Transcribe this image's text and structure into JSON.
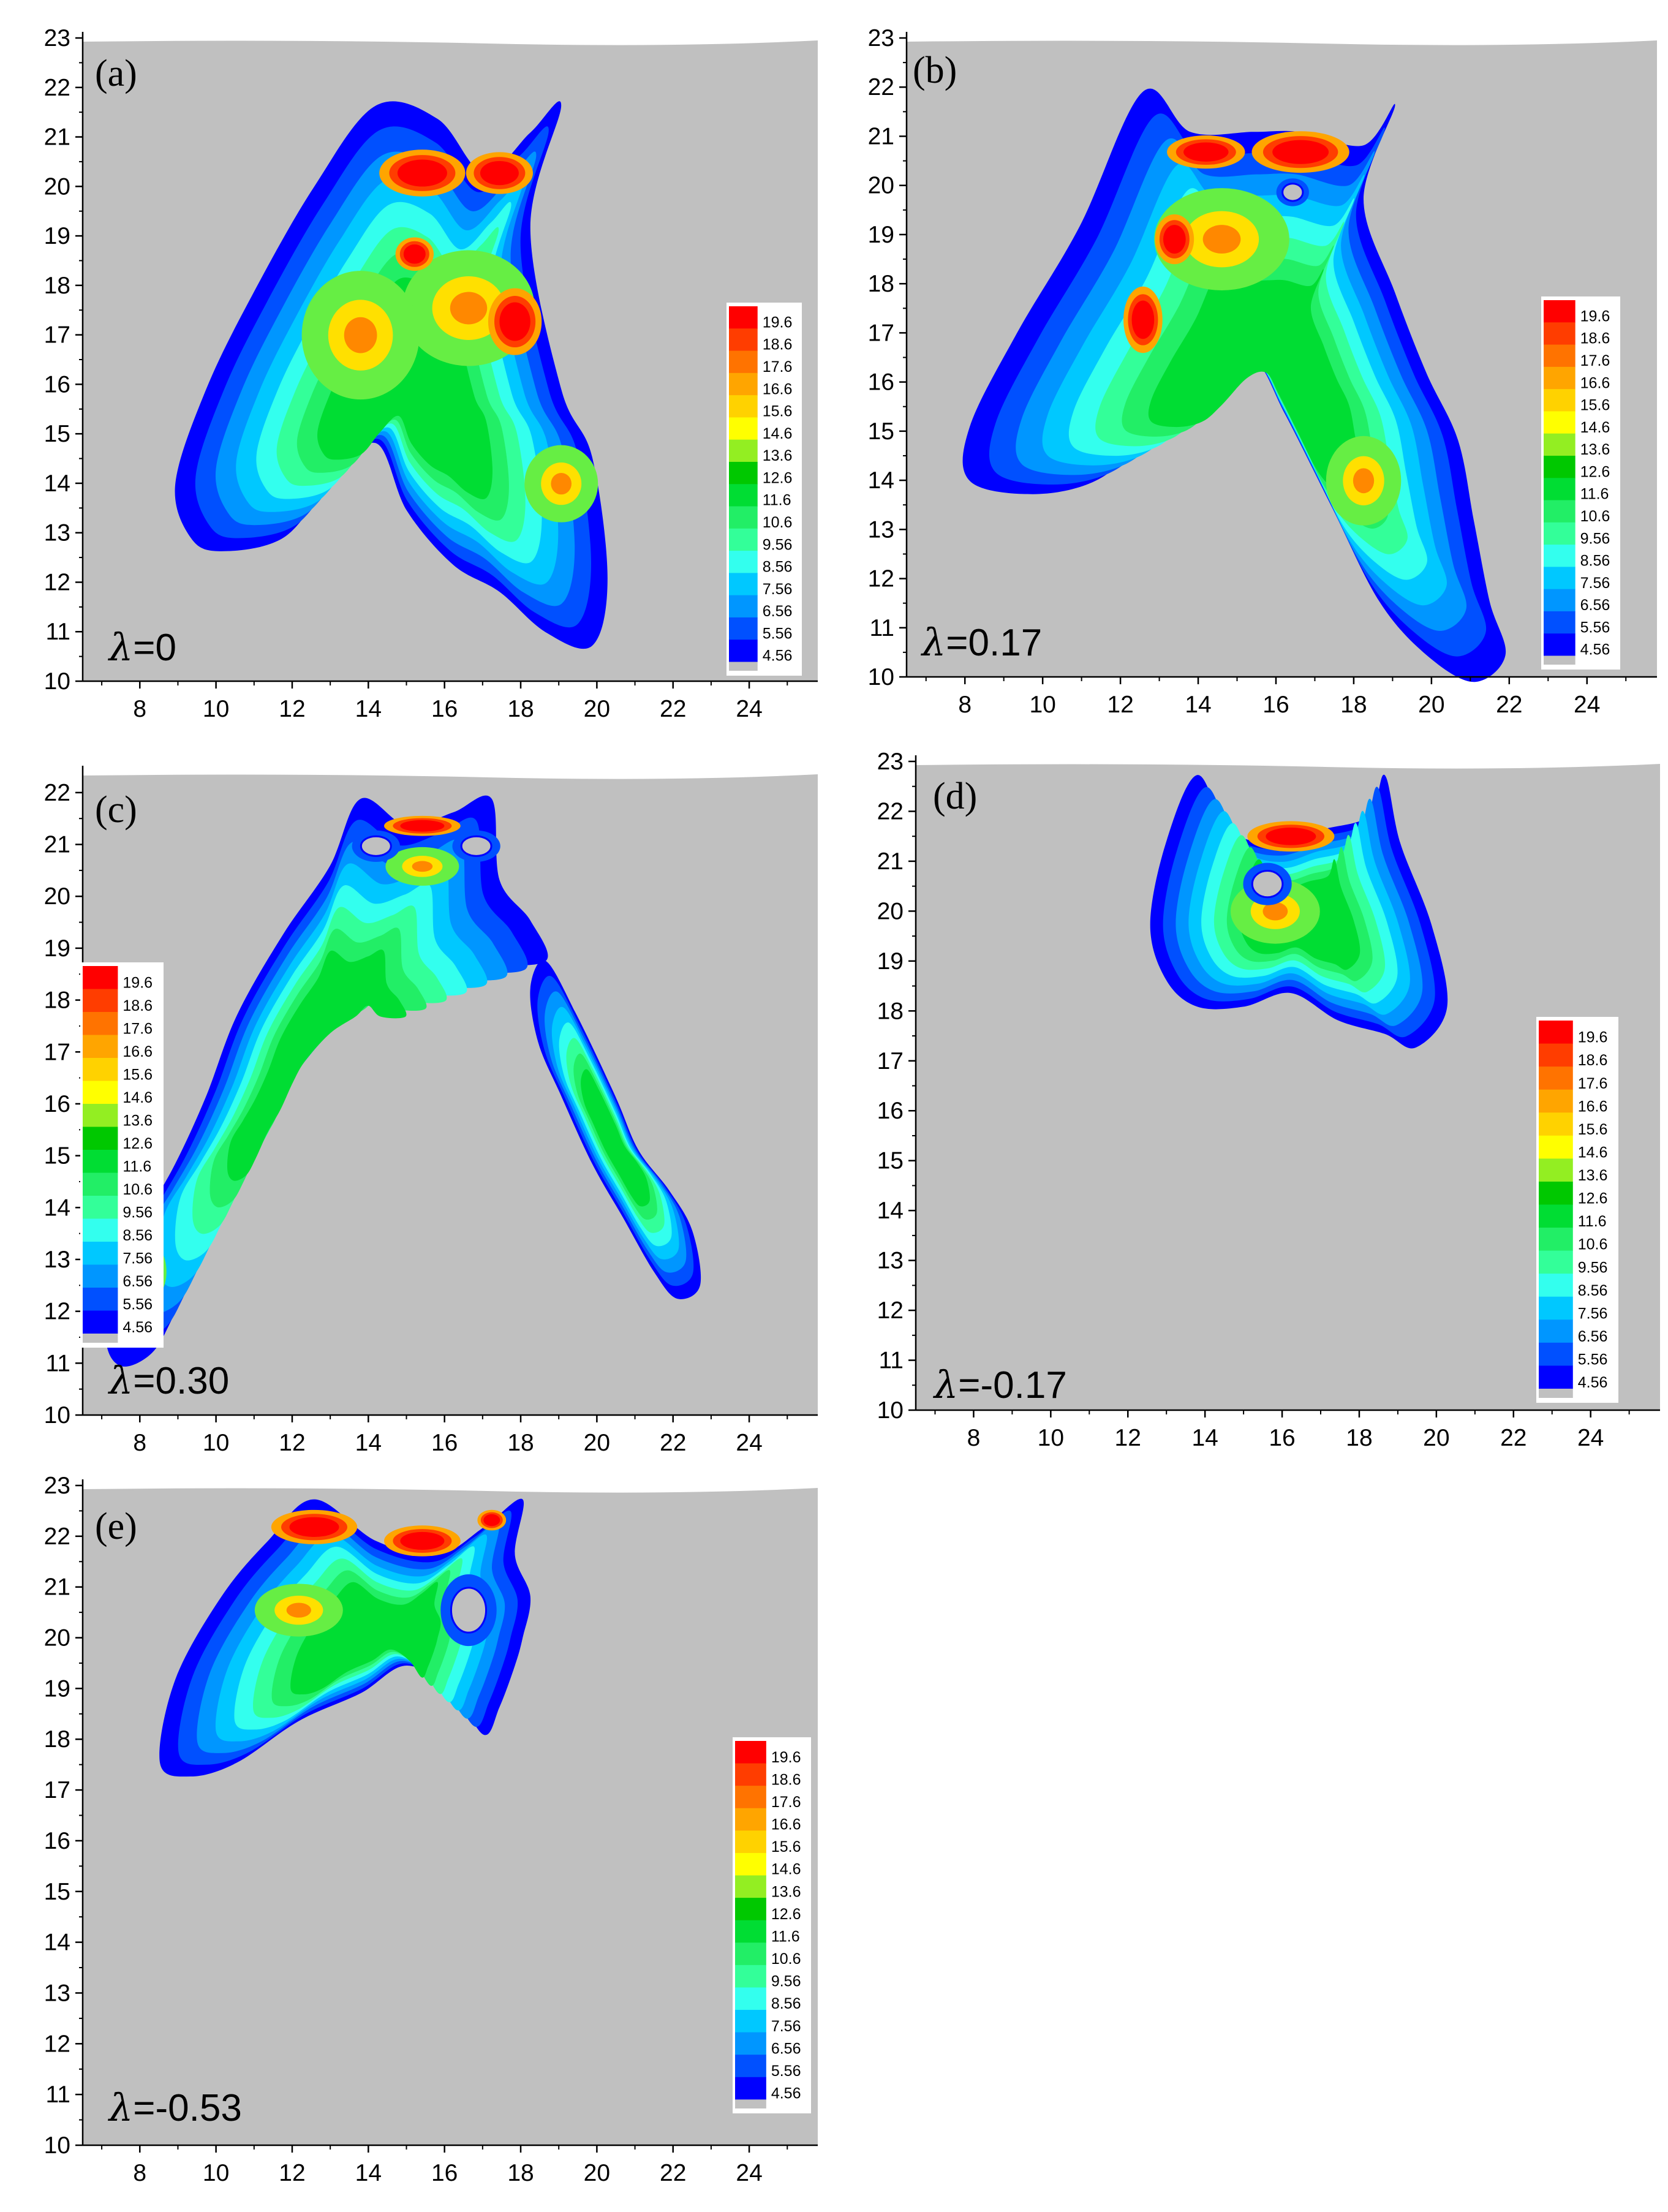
{
  "colorbar": {
    "levels": [
      "19.6",
      "18.6",
      "17.6",
      "16.6",
      "15.6",
      "14.6",
      "13.6",
      "12.6",
      "11.6",
      "10.6",
      "9.56",
      "8.56",
      "7.56",
      "6.56",
      "5.56",
      "4.56"
    ],
    "colors": [
      "#ff0000",
      "#ff3d00",
      "#ff7300",
      "#ffa500",
      "#ffd200",
      "#ffff00",
      "#93ee22",
      "#00c800",
      "#00dd33",
      "#22ee66",
      "#33ff99",
      "#33ffee",
      "#00c8ff",
      "#0096ff",
      "#0050ff",
      "#0000ff"
    ],
    "below_color": "#c0c0c0"
  },
  "chart_data": [
    {
      "type": "contour",
      "panel": "(a)",
      "lambda_label": "λ=0",
      "xticks": [
        "8",
        "10",
        "12",
        "14",
        "16",
        "18",
        "20",
        "22",
        "24"
      ],
      "yticks": [
        "10",
        "11",
        "12",
        "13",
        "14",
        "15",
        "16",
        "17",
        "18",
        "19",
        "20",
        "21",
        "22",
        "23"
      ],
      "xlim": [
        6.5,
        25.8
      ],
      "ylim": [
        10,
        23
      ],
      "colorbar_position": "right",
      "background_color": "#c0c0c0"
    },
    {
      "type": "contour",
      "panel": "(b)",
      "lambda_label": "λ=0.17",
      "xticks": [
        "8",
        "10",
        "12",
        "14",
        "16",
        "18",
        "20",
        "22",
        "24"
      ],
      "yticks": [
        "10",
        "11",
        "12",
        "13",
        "14",
        "15",
        "16",
        "17",
        "18",
        "19",
        "20",
        "21",
        "22",
        "23"
      ],
      "xlim": [
        6.5,
        25.8
      ],
      "ylim": [
        10,
        23
      ],
      "colorbar_position": "right",
      "background_color": "#c0c0c0"
    },
    {
      "type": "contour",
      "panel": "(c)",
      "lambda_label": "λ=0.30",
      "xticks": [
        "8",
        "10",
        "12",
        "14",
        "16",
        "18",
        "20",
        "22",
        "24"
      ],
      "yticks": [
        "10",
        "11",
        "12",
        "13",
        "14",
        "15",
        "16",
        "17",
        "18",
        "19",
        "20",
        "21",
        "22"
      ],
      "xlim": [
        6.5,
        25.8
      ],
      "ylim": [
        10,
        22.4
      ],
      "colorbar_position": "left",
      "background_color": "#c0c0c0"
    },
    {
      "type": "contour",
      "panel": "(d)",
      "lambda_label": "λ=-0.17",
      "xticks": [
        "8",
        "10",
        "12",
        "14",
        "16",
        "18",
        "20",
        "22",
        "24"
      ],
      "yticks": [
        "10",
        "11",
        "12",
        "13",
        "14",
        "15",
        "16",
        "17",
        "18",
        "19",
        "20",
        "21",
        "22",
        "23"
      ],
      "xlim": [
        6.5,
        25.8
      ],
      "ylim": [
        10,
        23
      ],
      "colorbar_position": "right",
      "background_color": "#c0c0c0"
    },
    {
      "type": "contour",
      "panel": "(e)",
      "lambda_label": "λ=-0.53",
      "xticks": [
        "8",
        "10",
        "12",
        "14",
        "16",
        "18",
        "20",
        "22",
        "24"
      ],
      "yticks": [
        "10",
        "11",
        "12",
        "13",
        "14",
        "15",
        "16",
        "17",
        "18",
        "19",
        "20",
        "21",
        "22",
        "23"
      ],
      "xlim": [
        6.5,
        25.8
      ],
      "ylim": [
        10,
        23
      ],
      "colorbar_position": "right",
      "background_color": "#c0c0c0"
    }
  ]
}
